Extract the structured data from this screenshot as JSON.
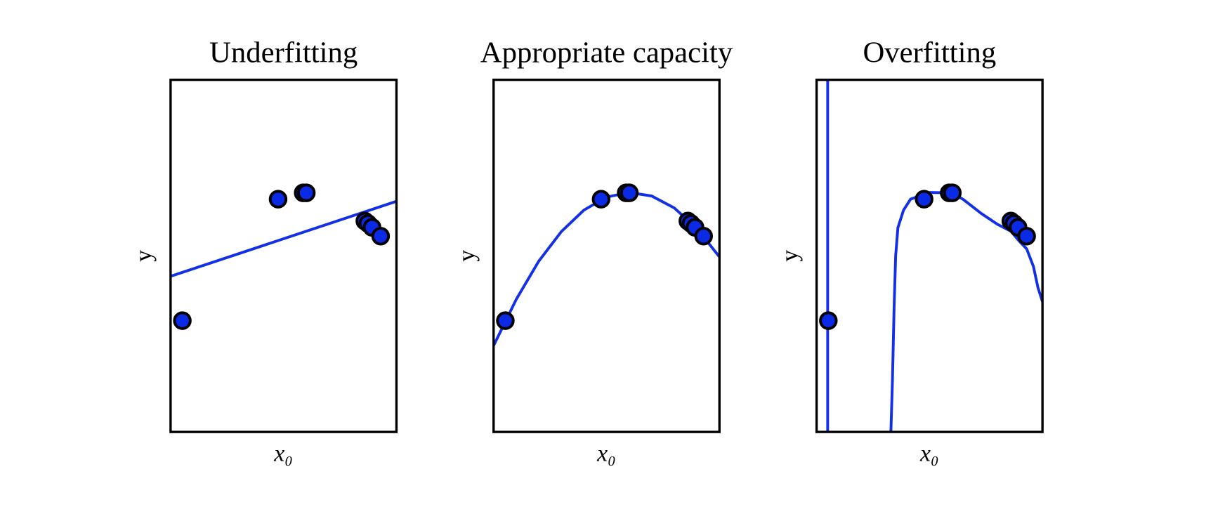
{
  "chart_data": [
    {
      "type": "scatter",
      "title": "Underfitting",
      "x_label": "x₀",
      "y_label": "y",
      "xlim": [
        0,
        1
      ],
      "ylim": [
        0,
        1
      ],
      "points": {
        "color": "#0a2ae6",
        "x": [
          0.052,
          0.476,
          0.587,
          0.601,
          0.86,
          0.874,
          0.892,
          0.93
        ],
        "y": [
          0.316,
          0.661,
          0.679,
          0.679,
          0.599,
          0.592,
          0.581,
          0.556
        ]
      },
      "curve": {
        "color": "#1330e8",
        "x": [
          0,
          1
        ],
        "y": [
          0.442,
          0.655
        ]
      }
    },
    {
      "type": "scatter",
      "title": "Appropriate capacity",
      "x_label": "x₀",
      "y_label": "y",
      "xlim": [
        0,
        1
      ],
      "ylim": [
        0,
        1
      ],
      "points": {
        "color": "#0a2ae6",
        "x": [
          0.052,
          0.476,
          0.587,
          0.601,
          0.86,
          0.874,
          0.892,
          0.93
        ],
        "y": [
          0.316,
          0.661,
          0.679,
          0.679,
          0.599,
          0.592,
          0.581,
          0.556
        ]
      },
      "curve": {
        "color": "#1330e8",
        "x": [
          0,
          0.1,
          0.2,
          0.3,
          0.4,
          0.5,
          0.6,
          0.7,
          0.8,
          0.9,
          1.0
        ],
        "y": [
          0.245,
          0.376,
          0.485,
          0.569,
          0.63,
          0.667,
          0.68,
          0.67,
          0.636,
          0.578,
          0.497
        ]
      }
    },
    {
      "type": "scatter",
      "title": "Overfitting",
      "x_label": "x₀",
      "y_label": "y",
      "xlim": [
        0,
        1
      ],
      "ylim": [
        0,
        1
      ],
      "points": {
        "color": "#0a2ae6",
        "x": [
          0.052,
          0.476,
          0.587,
          0.601,
          0.86,
          0.874,
          0.892,
          0.93
        ],
        "y": [
          0.316,
          0.661,
          0.679,
          0.679,
          0.599,
          0.592,
          0.581,
          0.556
        ]
      },
      "curve": {
        "color": "#1330e8",
        "x": [
          0.049,
          0.049,
          null,
          0.329,
          0.336,
          0.343,
          0.35,
          0.36,
          0.385,
          0.416,
          0.5,
          0.6,
          0.65,
          0.73,
          0.8,
          0.86,
          0.9,
          0.93,
          0.96,
          0.98,
          1.0
        ],
        "y": [
          1.0,
          0.0,
          null,
          0.0,
          0.15,
          0.35,
          0.5,
          0.58,
          0.63,
          0.661,
          0.68,
          0.679,
          0.66,
          0.62,
          0.59,
          0.57,
          0.54,
          0.52,
          0.47,
          0.41,
          0.37
        ]
      }
    }
  ]
}
